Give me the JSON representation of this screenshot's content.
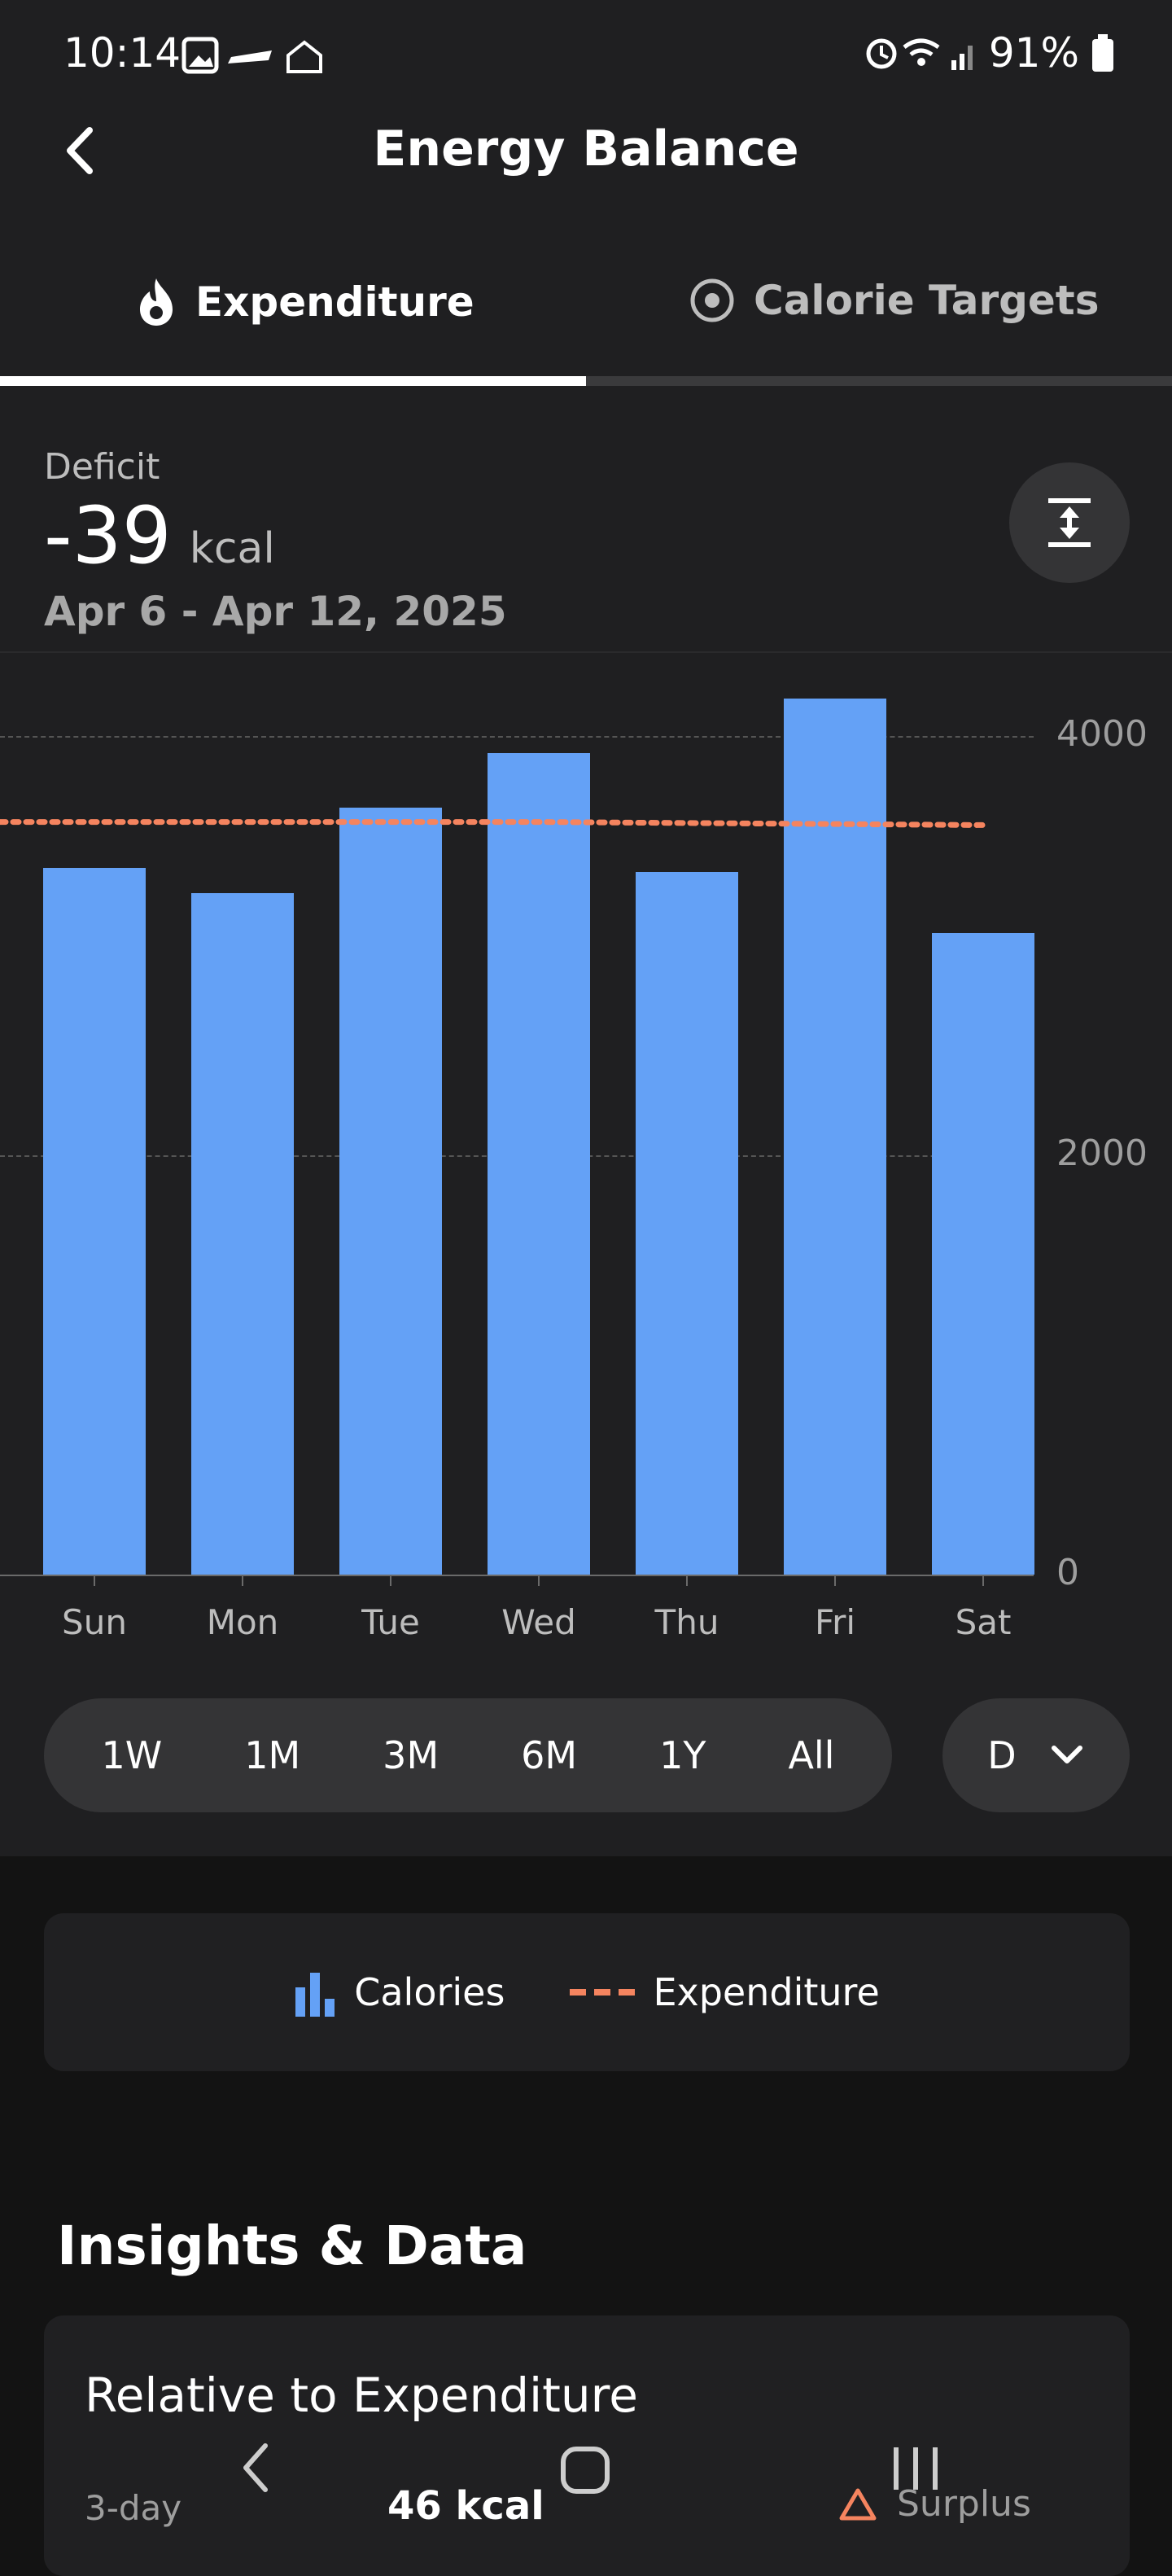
{
  "status_bar": {
    "time": "10:14",
    "battery": "91%"
  },
  "header": {
    "title": "Energy Balance"
  },
  "tabs": [
    {
      "label": "Expenditure",
      "icon": "flame-icon",
      "active": true
    },
    {
      "label": "Calorie Targets",
      "icon": "target-icon",
      "active": false
    }
  ],
  "summary": {
    "label": "Deficit",
    "value": "-39",
    "unit": "kcal",
    "date_range": "Apr 6 - Apr 12, 2025"
  },
  "chart_data": {
    "type": "bar",
    "categories": [
      "Sun",
      "Mon",
      "Tue",
      "Wed",
      "Thu",
      "Fri",
      "Sat"
    ],
    "series": [
      {
        "name": "Calories",
        "type": "bar",
        "color": "#64a1f6",
        "values": [
          3370,
          3250,
          3660,
          3920,
          3350,
          4180,
          3060
        ]
      },
      {
        "name": "Expenditure",
        "type": "line",
        "style": "dotted",
        "color": "#f5845f",
        "values": [
          3590,
          3590,
          3590,
          3590,
          3585,
          3580,
          3575
        ]
      }
    ],
    "yticks": [
      "4000",
      "2000",
      "0"
    ],
    "ylim": [
      0,
      4400
    ],
    "grid": true,
    "axis_side": "right"
  },
  "range_options": [
    "1W",
    "1M",
    "3M",
    "6M",
    "1Y",
    "All"
  ],
  "period_select": {
    "value": "D"
  },
  "legend": [
    {
      "label": "Calories",
      "icon": "bar-chart-icon"
    },
    {
      "label": "Expenditure",
      "icon": "dashed-line-icon"
    }
  ],
  "insights": {
    "title": "Insights & Data",
    "card": {
      "title": "Relative to Expenditure",
      "row_label": "3-day",
      "row_value": "46 kcal",
      "row_status": "Surplus"
    }
  },
  "colors": {
    "accent": "#64a1f6",
    "expenditure": "#f5845f",
    "background": "#1f1f21"
  }
}
